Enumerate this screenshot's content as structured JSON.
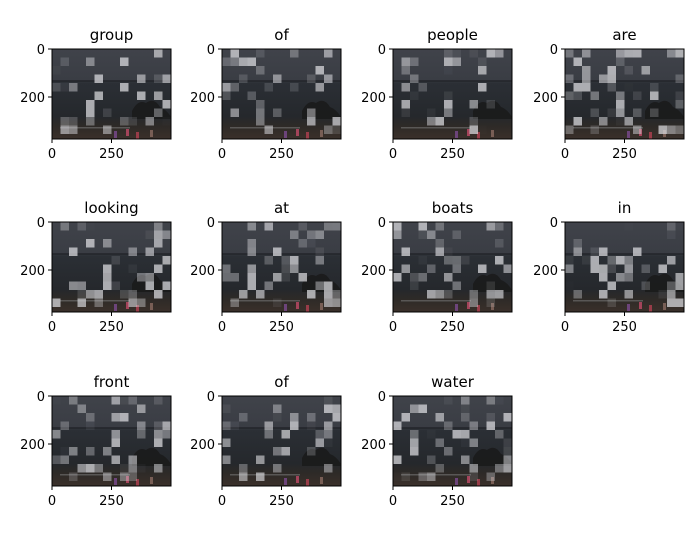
{
  "figure": {
    "background": "#ffffff",
    "panels": [
      {
        "title": "group"
      },
      {
        "title": "of"
      },
      {
        "title": "people"
      },
      {
        "title": "are"
      },
      {
        "title": "looking"
      },
      {
        "title": "at"
      },
      {
        "title": "boats"
      },
      {
        "title": "in"
      },
      {
        "title": "front"
      },
      {
        "title": "of"
      },
      {
        "title": "water"
      }
    ]
  },
  "chart_data": {
    "type": "heatmap",
    "description_free": true,
    "panel_titles": [
      "group",
      "of",
      "people",
      "are",
      "looking",
      "at",
      "boats",
      "in",
      "front",
      "of",
      "water"
    ],
    "xlim": [
      0,
      500
    ],
    "ylim": [
      375,
      0
    ],
    "xticks": [
      0,
      250
    ],
    "yticks": [
      0,
      200
    ],
    "colors": {
      "sky": "#3b3e44",
      "water": "#2a2d31",
      "shore": "#2f2c29",
      "highlight": "#d8d8dc"
    }
  }
}
